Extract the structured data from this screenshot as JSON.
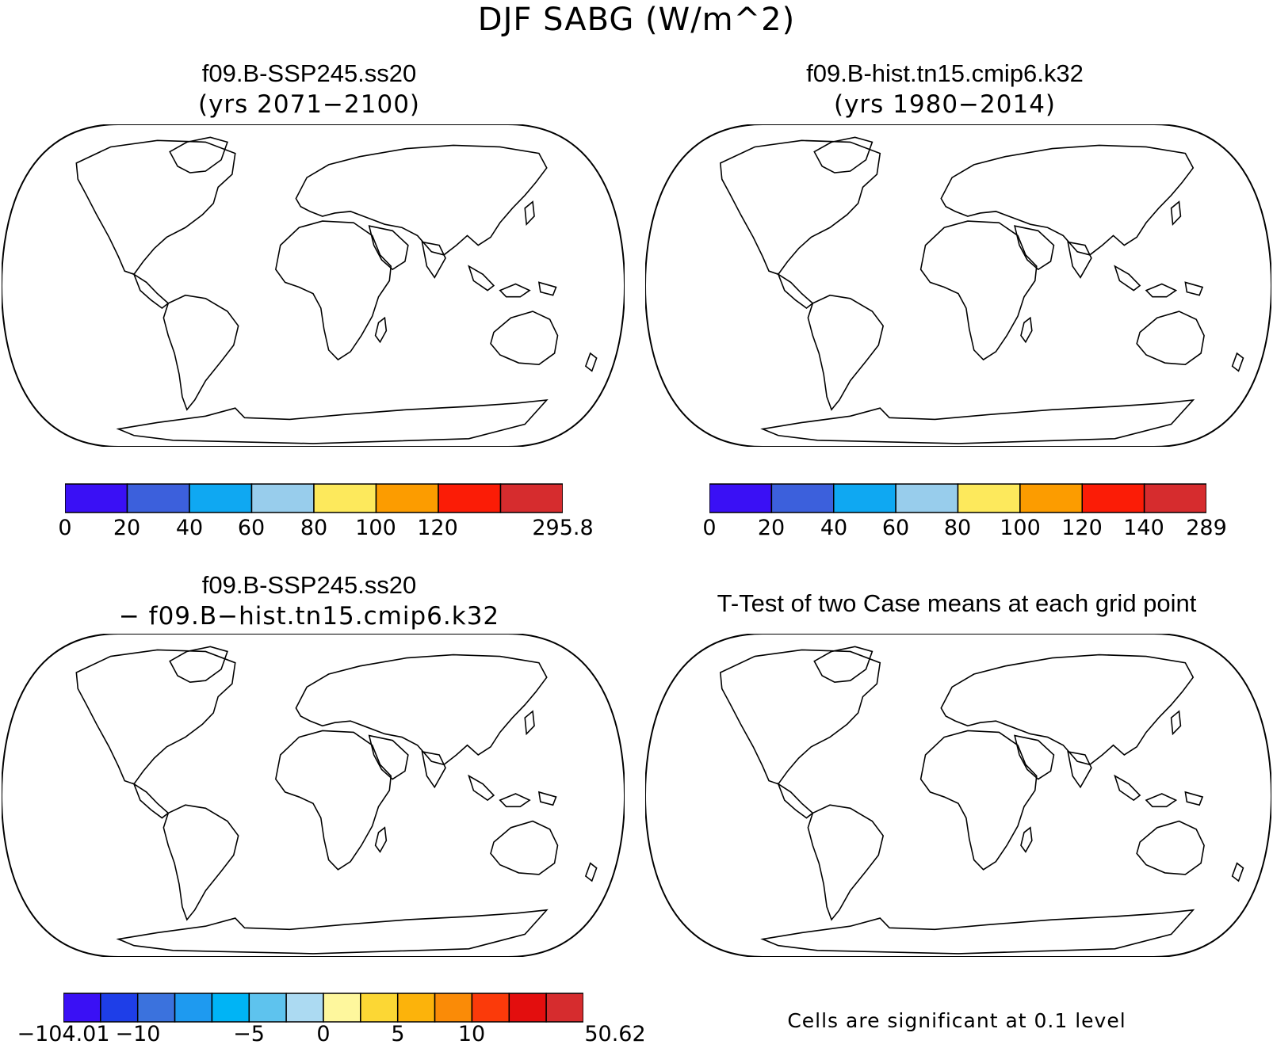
{
  "figure": {
    "title": "DJF SABG (W/m^2)",
    "colors": {
      "abs_palette": [
        "#3a10f5",
        "#3c60dc",
        "#0fa8f2",
        "#98cdec",
        "#fde95c",
        "#fc9c00",
        "#fb1c06",
        "#d62c2e"
      ],
      "diff_palette": [
        "#3a10f5",
        "#1e3ee8",
        "#3b72dd",
        "#1e9af0",
        "#00b4f5",
        "#5ec3ee",
        "#acdaf2",
        "#fef79d",
        "#fcd734",
        "#fcb30b",
        "#fa8b07",
        "#fb3a0a",
        "#e30e0e",
        "#d62c2e"
      ],
      "significant": "#ff0000",
      "ocean": "#ffffff",
      "coastline": "#000000"
    }
  },
  "panels": [
    {
      "id": "case1",
      "title": "f09.B-SSP245.ss20",
      "subtitle": "(yrs 2071−2100)",
      "colorbar": {
        "labels": [
          "0",
          "20",
          "40",
          "60",
          "80",
          "100",
          "120",
          "",
          "295.8"
        ]
      }
    },
    {
      "id": "case2",
      "title": "f09.B-hist.tn15.cmip6.k32",
      "subtitle": "(yrs 1980−2014)",
      "colorbar": {
        "labels": [
          "0",
          "20",
          "40",
          "60",
          "80",
          "100",
          "120",
          "140",
          "289"
        ]
      }
    },
    {
      "id": "difference",
      "title": "f09.B-SSP245.ss20",
      "subtitle": "− f09.B−hist.tn15.cmip6.k32",
      "colorbar": {
        "labels": [
          "−104.01",
          "",
          "−10",
          "",
          "−5",
          "",
          "0",
          "",
          "5",
          "",
          "10",
          "",
          "",
          "",
          "50.62"
        ]
      }
    },
    {
      "id": "ttest",
      "title": "T-Test of two Case means at each grid point",
      "footnote": "Cells are significant at 0.1 level"
    }
  ]
}
